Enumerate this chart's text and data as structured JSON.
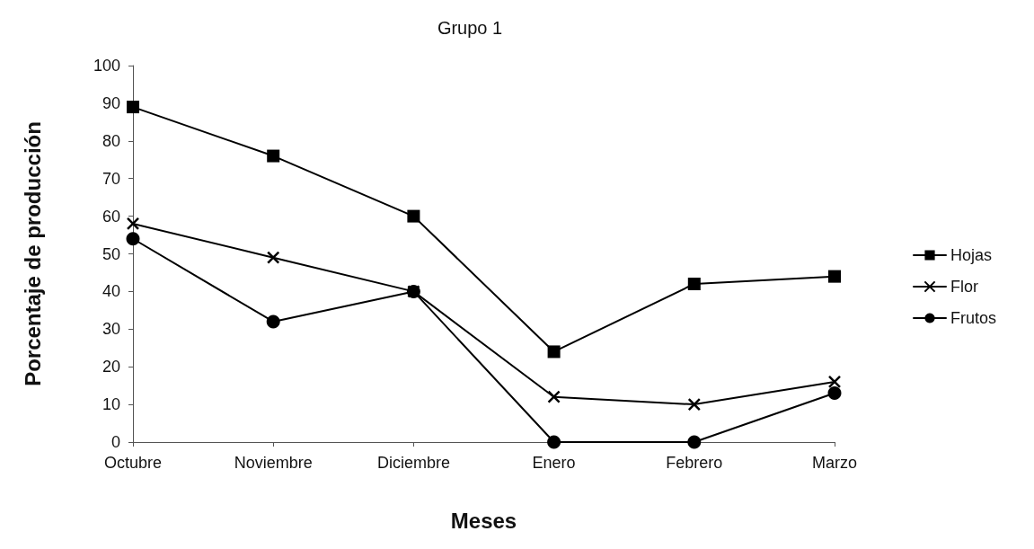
{
  "chart_data": {
    "type": "line",
    "title": "Grupo 1",
    "xlabel": "Meses",
    "ylabel": "Porcentaje de producción",
    "categories": [
      "Octubre",
      "Noviembre",
      "Diciembre",
      "Enero",
      "Febrero",
      "Marzo"
    ],
    "series": [
      {
        "name": "Hojas",
        "color": "#000000",
        "marker": "square",
        "values": [
          89,
          76,
          60,
          24,
          42,
          44
        ]
      },
      {
        "name": "Flor",
        "color": "#000000",
        "marker": "cross",
        "values": [
          58,
          49,
          40,
          12,
          10,
          16
        ]
      },
      {
        "name": "Frutos",
        "color": "#000000",
        "marker": "circle",
        "values": [
          54,
          32,
          40,
          0,
          0,
          13
        ]
      }
    ],
    "ylim": [
      0,
      100
    ],
    "yticks": [
      0,
      10,
      20,
      30,
      40,
      50,
      60,
      70,
      80,
      90,
      100
    ],
    "grid": false,
    "legend": "right",
    "line_style": "solid"
  }
}
